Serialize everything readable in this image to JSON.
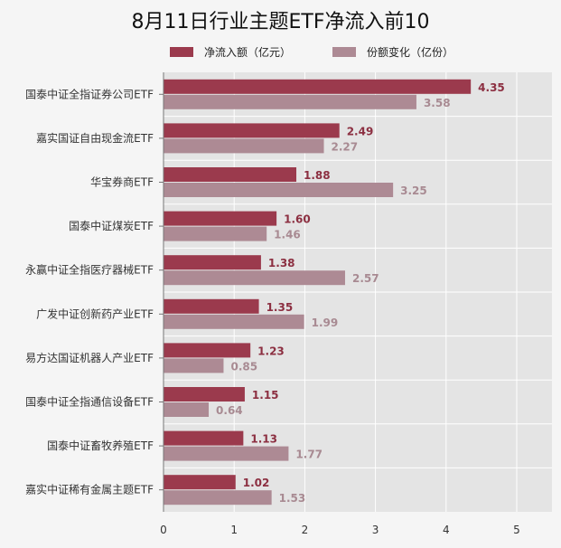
{
  "chart_data": {
    "type": "bar",
    "orientation": "horizontal",
    "title": "8月11日行业主题ETF净流入前10",
    "categories": [
      "国泰中证全指证券公司ETF",
      "嘉实国证自由现金流ETF",
      "华宝券商ETF",
      "国泰中证煤炭ETF",
      "永赢中证全指医疗器械ETF",
      "广发中证创新药产业ETF",
      "易方达国证机器人产业ETF",
      "国泰中证全指通信设备ETF",
      "国泰中证畜牧养殖ETF",
      "嘉实中证稀有金属主题ETF"
    ],
    "series": [
      {
        "name": "净流入额（亿元）",
        "color": "#9b3a4d",
        "label_color": "#8c2f41",
        "values": [
          4.35,
          2.49,
          1.88,
          1.6,
          1.38,
          1.35,
          1.23,
          1.15,
          1.13,
          1.02
        ]
      },
      {
        "name": "份额变化（亿份）",
        "color": "#ad8a94",
        "label_color": "#a88a92",
        "values": [
          3.58,
          2.27,
          3.25,
          1.46,
          2.57,
          1.99,
          0.85,
          0.64,
          1.77,
          1.53
        ]
      }
    ],
    "xlim": [
      0,
      5.5
    ],
    "xticks": [
      "0",
      "1",
      "2",
      "3",
      "4",
      "5"
    ],
    "grid": true,
    "legend_position": "top"
  }
}
